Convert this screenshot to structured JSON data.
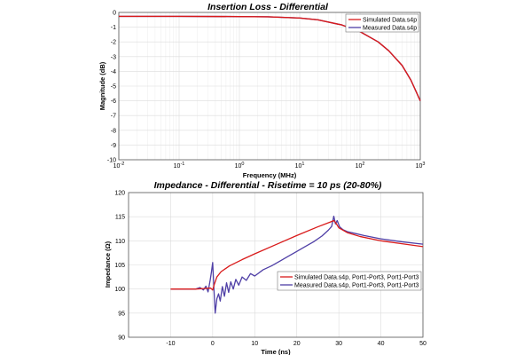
{
  "colors": {
    "simulated": "#d91a1a",
    "measured": "#4f3fa6",
    "frame": "#555555",
    "grid": "#dcdcdc"
  },
  "chart_data": [
    {
      "type": "line",
      "title": "Insertion Loss - Differential",
      "xlabel": "Frequency (MHz)",
      "ylabel": "Magnitude (dB)",
      "xscale": "log",
      "xlim": [
        0.01,
        1000
      ],
      "ylim": [
        -10,
        0
      ],
      "yticks": [
        "0",
        "-1",
        "-2",
        "-3",
        "-4",
        "-5",
        "-6",
        "-7",
        "-8",
        "-9",
        "-10"
      ],
      "xticks": [
        {
          "base": "10",
          "exp": "-2"
        },
        {
          "base": "10",
          "exp": "-1"
        },
        {
          "base": "10",
          "exp": "0"
        },
        {
          "base": "10",
          "exp": "1"
        },
        {
          "base": "10",
          "exp": "2"
        },
        {
          "base": "10",
          "exp": "3"
        }
      ],
      "grid": true,
      "legend": "top-right",
      "series": [
        {
          "name": "Simulated Data.s4p",
          "color_key": "simulated",
          "x": [
            0.01,
            0.1,
            1,
            3,
            10,
            20,
            50,
            100,
            200,
            300,
            500,
            700,
            1000
          ],
          "y": [
            -0.27,
            -0.27,
            -0.28,
            -0.3,
            -0.38,
            -0.5,
            -0.85,
            -1.3,
            -2.0,
            -2.6,
            -3.6,
            -4.6,
            -6.0
          ]
        },
        {
          "name": "Measured Data.s4p",
          "color_key": "measured",
          "x": [
            0.01,
            0.1,
            1,
            3,
            10,
            20,
            50,
            100,
            200,
            300,
            500,
            700,
            1000
          ],
          "y": [
            -0.27,
            -0.27,
            -0.28,
            -0.3,
            -0.38,
            -0.5,
            -0.85,
            -1.3,
            -2.0,
            -2.6,
            -3.6,
            -4.6,
            -6.0
          ]
        }
      ]
    },
    {
      "type": "line",
      "title": "Impedance - Differential - Risetime = 10 ps (20-80%)",
      "xlabel": "Time (ns)",
      "ylabel": "Impedance (Ω)",
      "xlim": [
        -20,
        50
      ],
      "ylim": [
        90,
        120
      ],
      "xticks": [
        "-10",
        "0",
        "10",
        "20",
        "30",
        "40",
        "50"
      ],
      "xtick_values": [
        -10,
        0,
        10,
        20,
        30,
        40,
        50
      ],
      "yticks": [
        "120",
        "115",
        "110",
        "105",
        "100",
        "95",
        "90"
      ],
      "ytick_values": [
        120,
        115,
        110,
        105,
        100,
        95,
        90
      ],
      "grid": true,
      "legend": "right",
      "series": [
        {
          "name": "Simulated Data.s4p, Port1-Port3, Port1-Port3",
          "color_key": "simulated",
          "x": [
            -10,
            -4,
            -2,
            -0.5,
            0,
            0.4,
            1,
            2,
            4,
            7,
            10,
            15,
            20,
            25,
            28,
            28.8,
            29.3,
            30,
            32,
            35,
            40,
            45,
            50
          ],
          "y": [
            100,
            100,
            100.1,
            100.2,
            99.8,
            101,
            102.5,
            103.6,
            104.8,
            106.1,
            107.3,
            109.2,
            111.1,
            112.9,
            113.9,
            114.2,
            113.7,
            112.7,
            111.7,
            110.9,
            110,
            109.4,
            108.8
          ]
        },
        {
          "name": "Measured Data.s4p, Port1-Port3, Port1-Port3",
          "color_key": "measured",
          "x": [
            -10,
            -6,
            -4,
            -3,
            -2.2,
            -1.6,
            -1.1,
            -0.6,
            -0.3,
            0,
            0.3,
            0.6,
            1,
            1.4,
            1.8,
            2.3,
            2.8,
            3.3,
            3.8,
            4.3,
            4.9,
            5.5,
            6.2,
            7,
            8,
            9,
            10,
            12,
            14,
            16,
            18,
            20,
            22,
            24,
            26,
            27.5,
            28.3,
            28.8,
            29.2,
            29.6,
            30.2,
            31,
            32,
            34,
            36,
            40,
            45,
            50
          ],
          "y": [
            100,
            100,
            100,
            100.3,
            99.8,
            100.6,
            99.4,
            101.8,
            103.5,
            105.5,
            100,
            95,
            98,
            99,
            97.5,
            100.5,
            98.5,
            101.3,
            99.3,
            101.5,
            100,
            102,
            100.8,
            102.5,
            101.8,
            103.2,
            102.7,
            104,
            104.8,
            105.8,
            106.8,
            107.8,
            108.8,
            109.8,
            111,
            112.2,
            113,
            115.1,
            113.5,
            114.2,
            112.9,
            112.3,
            111.9,
            111.5,
            111.1,
            110.4,
            109.8,
            109.3
          ]
        }
      ]
    }
  ]
}
